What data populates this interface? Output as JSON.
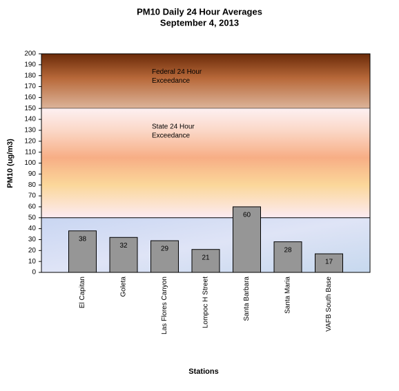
{
  "chart_data": {
    "type": "bar",
    "title": "PM10 Daily 24 Hour Averages",
    "subtitle": "September 4, 2013",
    "x_label": "Stations",
    "y_label": "PM10 (ug/m3)",
    "categories": [
      "El Capitan",
      "Goleta",
      "Las Flores Canyon",
      "Lompoc H Street",
      "Santa Barbara",
      "Santa Maria",
      "VAFB South Base"
    ],
    "values": [
      38,
      32,
      29,
      21,
      60,
      28,
      17
    ],
    "color": "#969696",
    "ylim": [
      0,
      200
    ],
    "yticks": [
      0,
      10,
      20,
      30,
      40,
      50,
      60,
      70,
      80,
      90,
      100,
      110,
      120,
      130,
      140,
      150,
      160,
      170,
      180,
      190,
      200
    ],
    "grid": false,
    "zones": [
      {
        "from": 150,
        "to": 200,
        "label": "Federal 24 Hour\nExceedance"
      },
      {
        "from": 50,
        "to": 150,
        "label": "State 24 Hour\nExceedance"
      }
    ]
  }
}
